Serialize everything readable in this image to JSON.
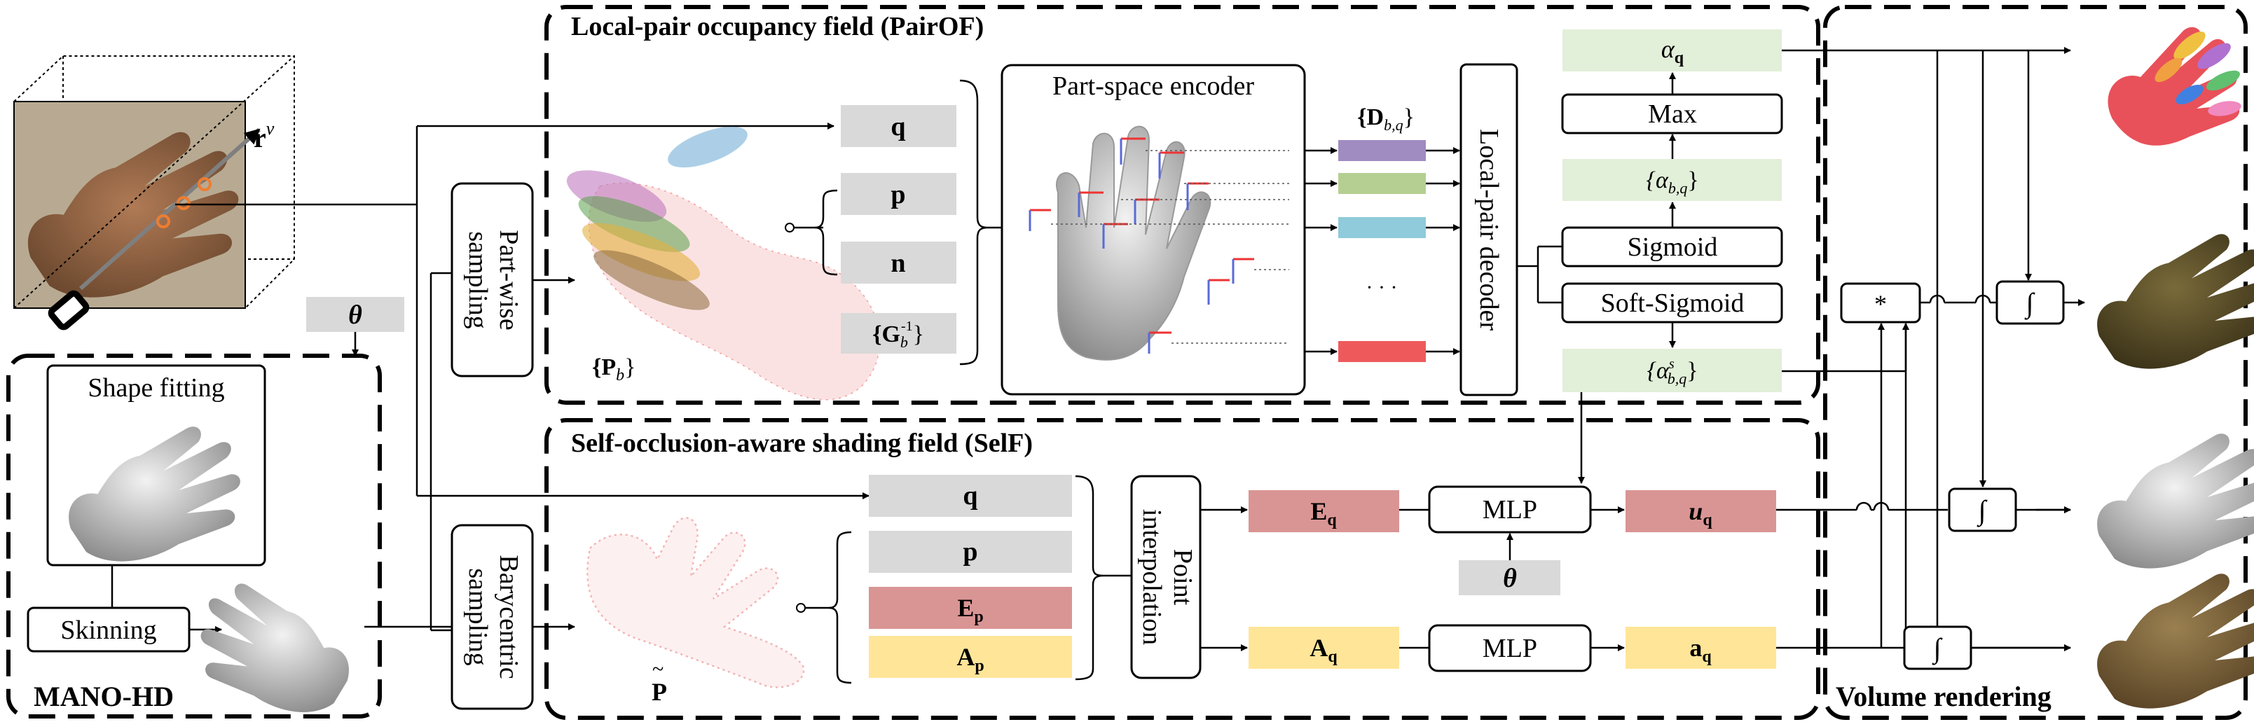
{
  "sections": {
    "pairof_title": "Local-pair occupancy field (PairOF)",
    "self_title": "Self-occlusion-aware shading field (SelF)",
    "mano_title": "MANO-HD",
    "volume_title": "Volume rendering"
  },
  "input": {
    "ray_label": "r",
    "ray_sup": "v",
    "theta": "θ"
  },
  "mano": {
    "shape_fitting": "Shape fitting",
    "skinning": "Skinning"
  },
  "sampling": {
    "partwise_line1": "Part-wise",
    "partwise_line2": "sampling",
    "bary_line1": "Barycentric",
    "bary_line2": "sampling"
  },
  "pairof": {
    "pb_label": "{P",
    "pb_sub": "b",
    "pb_close": "}",
    "q": "q",
    "p": "p",
    "n": "n",
    "g_label": "{G",
    "g_sub": "b",
    "g_sup": "-1",
    "g_close": "}",
    "encoder": "Part-space encoder",
    "d_label": "{D",
    "d_sub": "b,q",
    "d_close": "}",
    "ellipsis": "· · ·",
    "decoder": "Local-pair decoder",
    "alpha_q": "α",
    "alpha_q_sub": "q",
    "max": "Max",
    "alpha_bq": "{α",
    "alpha_bq_sub": "b,q",
    "alpha_bq_close": "}",
    "sigmoid": "Sigmoid",
    "soft_sigmoid": "Soft-Sigmoid",
    "alpha_s": "{α",
    "alpha_s_sup": "s",
    "alpha_s_sub": "b,q",
    "alpha_s_close": "}"
  },
  "self": {
    "p_tilde": "P",
    "q": "q",
    "p": "p",
    "ep": "E",
    "ep_sub": "p",
    "ap": "A",
    "ap_sub": "p",
    "interp_line1": "Point",
    "interp_line2": "interpolation",
    "eq": "E",
    "eq_sub": "q",
    "aq": "A",
    "aq_sub": "q",
    "mlp1": "MLP",
    "mlp2": "MLP",
    "theta": "θ",
    "uq": "u",
    "uq_sub": "q",
    "aq_out": "a",
    "aq_out_sub": "q"
  },
  "volume": {
    "mult": "*",
    "integral": "∫"
  },
  "colors": {
    "gray": "#d9d9d9",
    "green": "#e2efd9",
    "red": "#d99594",
    "yellow": "#ffe598",
    "purple": "#a08cc0",
    "lightgreen": "#b5cf92",
    "cyan": "#8fcbda",
    "coral": "#ee5a5c"
  }
}
